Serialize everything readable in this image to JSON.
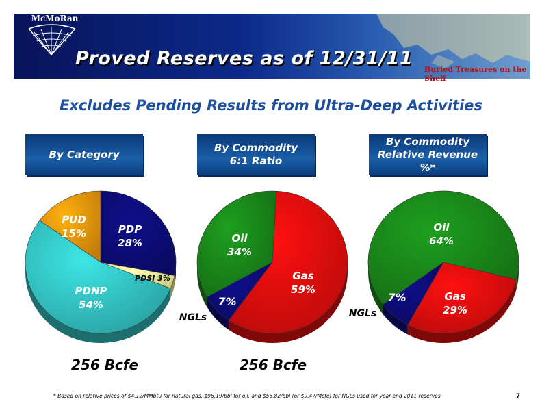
{
  "header": {
    "logo_text": "McMoRan",
    "title": "Proved Reserves as of 12/31/11",
    "tagline": "Buried Treasures on the Shelf"
  },
  "subtitle": "Excludes Pending Results from Ultra-Deep Activities",
  "chart_data": [
    {
      "type": "pie",
      "title": "By Category",
      "slices": [
        {
          "name": "PDP",
          "value": 28,
          "label": "28%",
          "color": "#0d0d7a"
        },
        {
          "name": "PDSI",
          "value": 3,
          "label": "3%",
          "color": "#ffff9c"
        },
        {
          "name": "PDNP",
          "value": 54,
          "label": "54%",
          "color": "#35c8c8"
        },
        {
          "name": "PUD",
          "value": 15,
          "label": "15%",
          "color": "#f39a0c"
        }
      ],
      "total": "256 Bcfe"
    },
    {
      "type": "pie",
      "title": "By Commodity 6:1 Ratio",
      "title_lines": [
        "By Commodity",
        "6:1 Ratio"
      ],
      "slices": [
        {
          "name": "Gas",
          "value": 59,
          "label": "59%",
          "color": "#e80e0e"
        },
        {
          "name": "NGLs",
          "value": 7,
          "label": "7%",
          "color": "#0d0d7a"
        },
        {
          "name": "Oil",
          "value": 34,
          "label": "34%",
          "color": "#1a8a1a"
        }
      ],
      "total": "256 Bcfe"
    },
    {
      "type": "pie",
      "title": "By Commodity Relative Revenue %*",
      "title_lines": [
        "By Commodity",
        "Relative Revenue %*"
      ],
      "slices": [
        {
          "name": "Gas",
          "value": 29,
          "label": "29%",
          "color": "#e80e0e"
        },
        {
          "name": "NGLs",
          "value": 7,
          "label": "7%",
          "color": "#0d0d7a"
        },
        {
          "name": "Oil",
          "value": 64,
          "label": "64%",
          "color": "#1a8a1a"
        }
      ]
    }
  ],
  "footnote": "* Based on relative prices of $4.12/MMbtu for natural gas, $96.19/bbl for oil, and $56.82/bbl (or $9.47/Mcfe) for NGLs used for year-end 2011 reserves",
  "page_number": "7"
}
